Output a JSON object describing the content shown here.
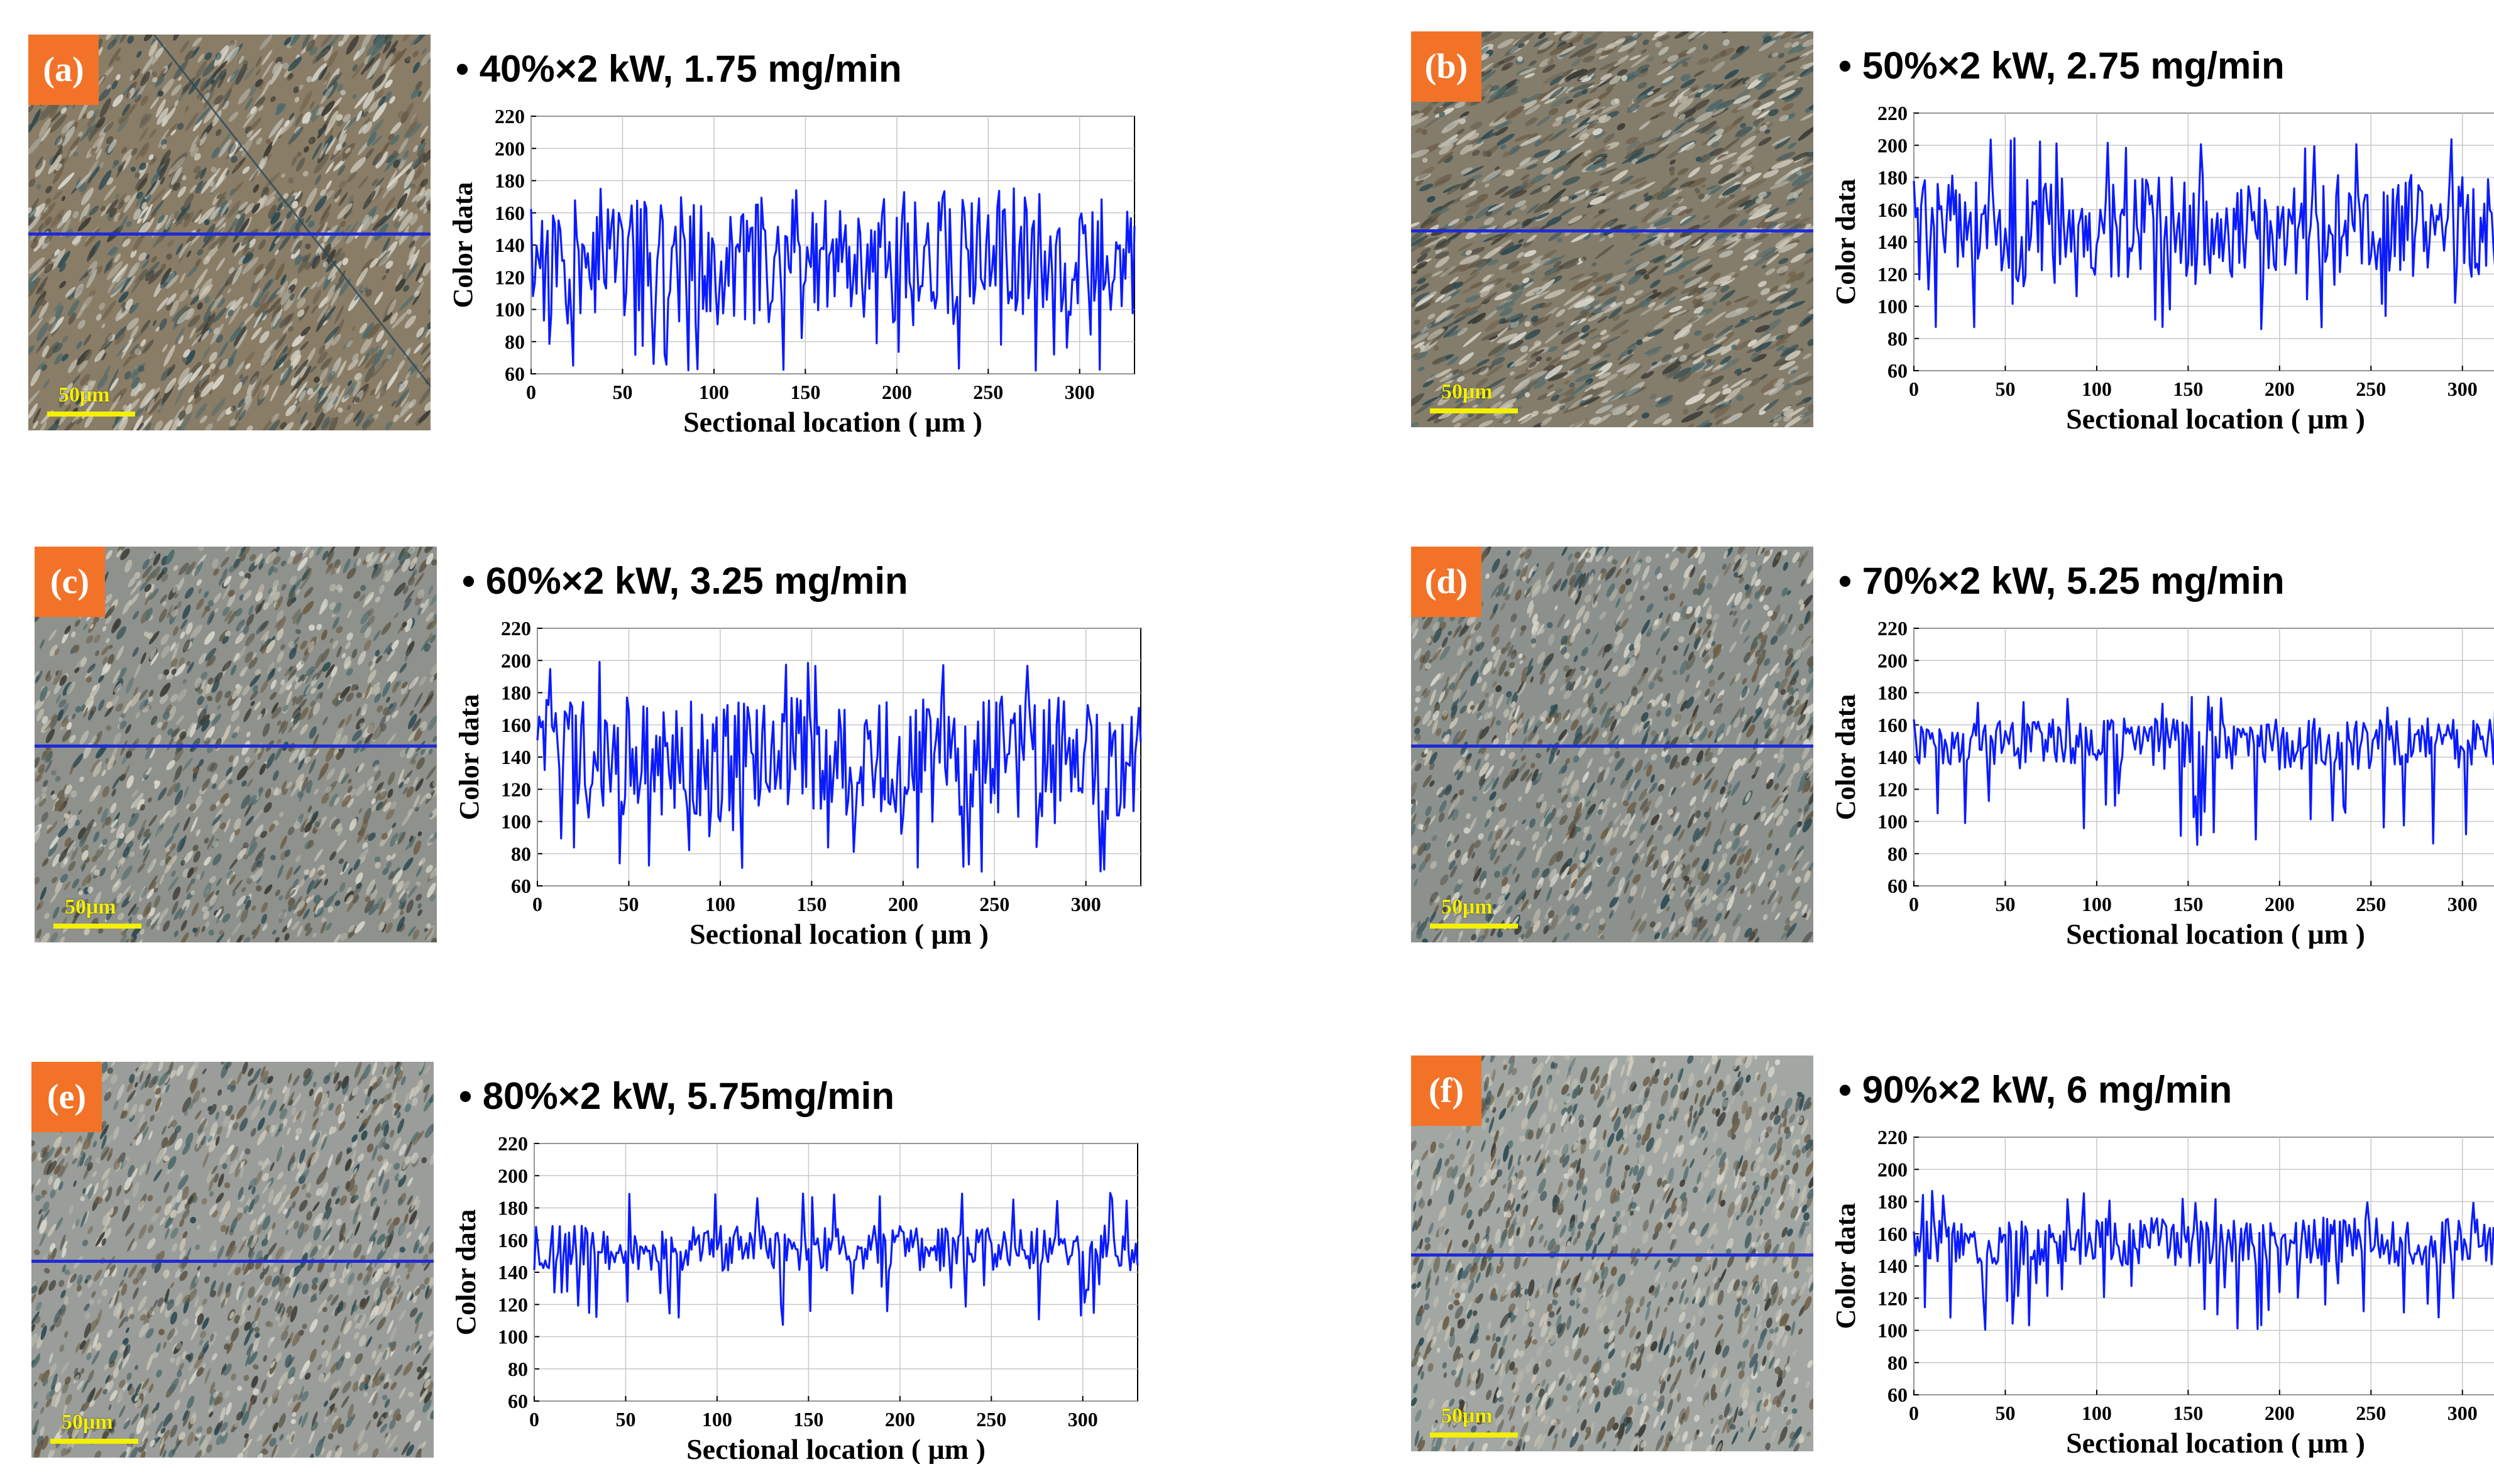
{
  "colors": {
    "badge": "#f27328",
    "series": "#0a1bff",
    "scan_line": "#1f2bd6",
    "scale_bar": "#f4f000"
  },
  "scale_label": "50μm",
  "panels": [
    {
      "label": "(a)",
      "condition": "40%×2 kW, 1.75 mg/min"
    },
    {
      "label": "(b)",
      "condition": "50%×2 kW, 2.75 mg/min"
    },
    {
      "label": "(c)",
      "condition": "60%×2 kW, 3.25 mg/min"
    },
    {
      "label": "(d)",
      "condition": "70%×2 kW, 5.25 mg/min"
    },
    {
      "label": "(e)",
      "condition": "80%×2 kW, 5.75mg/min"
    },
    {
      "label": "(f)",
      "condition": "90%×2 kW, 6 mg/min"
    }
  ],
  "chart_data": [
    {
      "type": "line",
      "panel": "(a)",
      "xlabel": "Sectional location ( μm )",
      "ylabel": "Color data",
      "xlim": [
        0,
        330
      ],
      "ylim": [
        60,
        220
      ],
      "xticks": [
        0,
        50,
        100,
        150,
        200,
        250,
        300
      ],
      "yticks": [
        60,
        80,
        100,
        120,
        140,
        160,
        180,
        200,
        220
      ],
      "mean": 130,
      "amp": 40,
      "min": 62,
      "max": 178,
      "seed": 11
    },
    {
      "type": "line",
      "panel": "(b)",
      "xlabel": "Sectional location ( μm )",
      "ylabel": "Color data",
      "xlim": [
        0,
        330
      ],
      "ylim": [
        60,
        220
      ],
      "xticks": [
        0,
        50,
        100,
        150,
        200,
        250,
        300
      ],
      "yticks": [
        60,
        80,
        100,
        120,
        140,
        160,
        180,
        200,
        220
      ],
      "mean": 150,
      "amp": 32,
      "min": 83,
      "max": 205,
      "seed": 23
    },
    {
      "type": "line",
      "panel": "(c)",
      "xlabel": "Sectional location ( μm )",
      "ylabel": "Color data",
      "xlim": [
        0,
        330
      ],
      "ylim": [
        60,
        220
      ],
      "xticks": [
        0,
        50,
        100,
        150,
        200,
        250,
        300
      ],
      "yticks": [
        60,
        80,
        100,
        120,
        140,
        160,
        180,
        200,
        220
      ],
      "mean": 140,
      "amp": 38,
      "min": 67,
      "max": 200,
      "seed": 37
    },
    {
      "type": "line",
      "panel": "(d)",
      "xlabel": "Sectional location ( μm )",
      "ylabel": "Color data",
      "xlim": [
        0,
        330
      ],
      "ylim": [
        60,
        220
      ],
      "xticks": [
        0,
        50,
        100,
        150,
        200,
        250,
        300
      ],
      "yticks": [
        60,
        80,
        100,
        120,
        140,
        160,
        180,
        200,
        220
      ],
      "mean": 148,
      "amp": 16,
      "min": 85,
      "max": 178,
      "seed": 41
    },
    {
      "type": "line",
      "panel": "(e)",
      "xlabel": "Sectional location ( μm )",
      "ylabel": "Color data",
      "xlim": [
        0,
        330
      ],
      "ylim": [
        60,
        220
      ],
      "xticks": [
        0,
        50,
        100,
        150,
        200,
        250,
        300
      ],
      "yticks": [
        60,
        80,
        100,
        120,
        140,
        160,
        180,
        200,
        220
      ],
      "mean": 155,
      "amp": 14,
      "min": 106,
      "max": 190,
      "seed": 53
    },
    {
      "type": "line",
      "panel": "(f)",
      "xlabel": "Sectional location ( μm )",
      "ylabel": "Color data",
      "xlim": [
        0,
        330
      ],
      "ylim": [
        60,
        220
      ],
      "xticks": [
        0,
        50,
        100,
        150,
        200,
        250,
        300
      ],
      "yticks": [
        60,
        80,
        100,
        120,
        140,
        160,
        180,
        200,
        220
      ],
      "mean": 155,
      "amp": 15,
      "min": 100,
      "max": 187,
      "seed": 67
    }
  ]
}
